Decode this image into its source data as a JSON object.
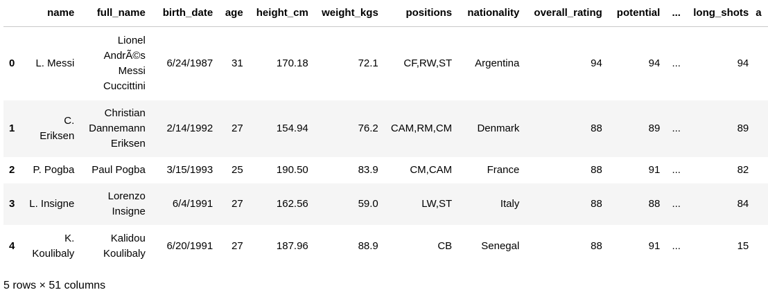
{
  "table": {
    "index_header": "",
    "columns": [
      "name",
      "full_name",
      "birth_date",
      "age",
      "height_cm",
      "weight_kgs",
      "positions",
      "nationality",
      "overall_rating",
      "potential",
      "...",
      "long_shots",
      "a"
    ],
    "rows": [
      {
        "index": "0",
        "cells": [
          "L. Messi",
          "Lionel AndrÃ©s Messi Cuccittini",
          "6/24/1987",
          "31",
          "170.18",
          "72.1",
          "CF,RW,ST",
          "Argentina",
          "94",
          "94",
          "...",
          "94",
          ""
        ]
      },
      {
        "index": "1",
        "cells": [
          "C. Eriksen",
          "Christian Dannemann Eriksen",
          "2/14/1992",
          "27",
          "154.94",
          "76.2",
          "CAM,RM,CM",
          "Denmark",
          "88",
          "89",
          "...",
          "89",
          ""
        ]
      },
      {
        "index": "2",
        "cells": [
          "P. Pogba",
          "Paul Pogba",
          "3/15/1993",
          "25",
          "190.50",
          "83.9",
          "CM,CAM",
          "France",
          "88",
          "91",
          "...",
          "82",
          ""
        ]
      },
      {
        "index": "3",
        "cells": [
          "L. Insigne",
          "Lorenzo Insigne",
          "6/4/1991",
          "27",
          "162.56",
          "59.0",
          "LW,ST",
          "Italy",
          "88",
          "88",
          "...",
          "84",
          ""
        ]
      },
      {
        "index": "4",
        "cells": [
          "K. Koulibaly",
          "Kalidou Koulibaly",
          "6/20/1991",
          "27",
          "187.96",
          "88.9",
          "CB",
          "Senegal",
          "88",
          "91",
          "...",
          "15",
          ""
        ]
      }
    ]
  },
  "footer": {
    "shape_text": "5 rows × 51 columns"
  }
}
